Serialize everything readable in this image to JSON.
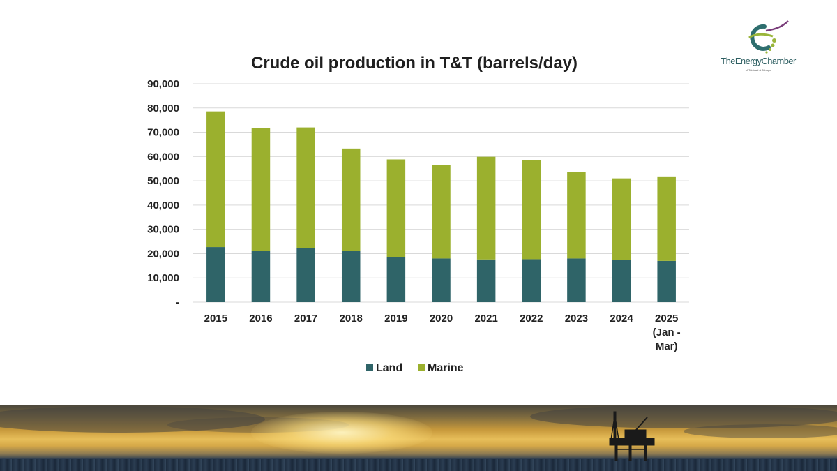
{
  "chart_data": {
    "type": "bar",
    "stacked": true,
    "title": "Crude oil production in T&T (barrels/day)",
    "xlabel": "",
    "ylabel": "",
    "categories": [
      "2015",
      "2016",
      "2017",
      "2018",
      "2019",
      "2020",
      "2021",
      "2022",
      "2023",
      "2024",
      "2025 (Jan - Mar)"
    ],
    "category_lines": [
      [
        "2015"
      ],
      [
        "2016"
      ],
      [
        "2017"
      ],
      [
        "2018"
      ],
      [
        "2019"
      ],
      [
        "2020"
      ],
      [
        "2021"
      ],
      [
        "2022"
      ],
      [
        "2023"
      ],
      [
        "2024"
      ],
      [
        "2025",
        "(Jan -",
        "Mar)"
      ]
    ],
    "series": [
      {
        "name": "Land",
        "color": "#2f6468",
        "values": [
          22700,
          21000,
          22400,
          21000,
          18600,
          18000,
          17600,
          17700,
          18000,
          17500,
          17000
        ]
      },
      {
        "name": "Marine",
        "color": "#9bb02e",
        "values": [
          55900,
          50600,
          49600,
          42300,
          40200,
          38600,
          42300,
          40800,
          35600,
          33500,
          34800
        ]
      }
    ],
    "ylim": [
      0,
      90000
    ],
    "yticks": [
      0,
      10000,
      20000,
      30000,
      40000,
      50000,
      60000,
      70000,
      80000,
      90000
    ],
    "ytick_labels": [
      "-",
      "10,000",
      "20,000",
      "30,000",
      "40,000",
      "50,000",
      "60,000",
      "70,000",
      "80,000",
      "90,000"
    ],
    "grid": true,
    "legend_position": "bottom"
  },
  "logo": {
    "name": "TheEnergyChamber",
    "subtitle": "of Trinidad & Tobago",
    "colors": {
      "teal": "#2e6e6e",
      "green": "#9ab53a",
      "purple": "#7a3d7a"
    }
  },
  "banner": {
    "icon": "offshore-oil-rig-icon"
  }
}
